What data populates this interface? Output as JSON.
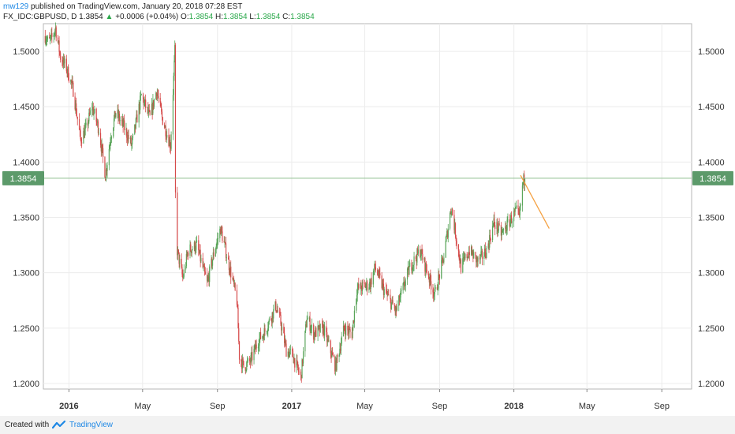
{
  "header": {
    "author": "mw129",
    "published_text": "published on TradingView.com, January 20, 2018 07:28 EST",
    "symbol": "FX_IDC:GBPUSD, D",
    "last_price": "1.3854",
    "change_arrow": "▲",
    "change": "+0.0006 (+0.04%)",
    "o_label": "O:",
    "o_value": "1.3854",
    "h_label": "H:",
    "h_value": "1.3854",
    "l_label": "L:",
    "l_value": "1.3854",
    "c_label": "C:",
    "c_value": "1.3854"
  },
  "footer": {
    "created_with": "Created with",
    "brand": "TradingView"
  },
  "colors": {
    "up": "#5aa55a",
    "down": "#d64a4a",
    "badge": "#5c9a6a",
    "trendline": "#f5a142",
    "grid": "#ececec",
    "brand": "#1e88e5"
  },
  "chart_data": {
    "type": "candlestick",
    "title": "",
    "ylim": [
      1.195,
      1.525
    ],
    "y_ticks": [
      "1.2000",
      "1.2500",
      "1.3000",
      "1.3500",
      "1.4000",
      "1.4500",
      "1.5000"
    ],
    "x_ticks": [
      {
        "label": "2016",
        "date": "2016-01-01",
        "bold": true
      },
      {
        "label": "May",
        "date": "2016-05-01",
        "bold": false
      },
      {
        "label": "Sep",
        "date": "2016-09-01",
        "bold": false
      },
      {
        "label": "2017",
        "date": "2017-01-01",
        "bold": true
      },
      {
        "label": "May",
        "date": "2017-05-01",
        "bold": false
      },
      {
        "label": "Sep",
        "date": "2017-09-01",
        "bold": false
      },
      {
        "label": "2018",
        "date": "2018-01-01",
        "bold": true
      },
      {
        "label": "May",
        "date": "2018-05-01",
        "bold": false
      },
      {
        "label": "Sep",
        "date": "2018-09-01",
        "bold": false
      }
    ],
    "x_range": [
      "2015-11-20",
      "2018-10-20"
    ],
    "last_price_label": "1.3854",
    "last_price": 1.3854,
    "trendline": {
      "x": [
        "2018-01-12",
        "2018-02-28"
      ],
      "y": [
        1.388,
        1.34
      ]
    },
    "price_path": [
      [
        "2015-11-22",
        1.515
      ],
      [
        "2015-11-28",
        1.508
      ],
      [
        "2015-12-04",
        1.512
      ],
      [
        "2015-12-10",
        1.521
      ],
      [
        "2015-12-18",
        1.495
      ],
      [
        "2015-12-28",
        1.485
      ],
      [
        "2016-01-08",
        1.465
      ],
      [
        "2016-01-20",
        1.42
      ],
      [
        "2016-01-29",
        1.43
      ],
      [
        "2016-02-08",
        1.45
      ],
      [
        "2016-02-19",
        1.43
      ],
      [
        "2016-03-01",
        1.388
      ],
      [
        "2016-03-10",
        1.425
      ],
      [
        "2016-03-18",
        1.445
      ],
      [
        "2016-03-31",
        1.432
      ],
      [
        "2016-04-13",
        1.415
      ],
      [
        "2016-04-29",
        1.46
      ],
      [
        "2016-05-13",
        1.44
      ],
      [
        "2016-05-24",
        1.465
      ],
      [
        "2016-06-02",
        1.44
      ],
      [
        "2016-06-16",
        1.415
      ],
      [
        "2016-06-23",
        1.5
      ],
      [
        "2016-06-24",
        1.37
      ],
      [
        "2016-06-27",
        1.32
      ],
      [
        "2016-07-06",
        1.295
      ],
      [
        "2016-07-15",
        1.32
      ],
      [
        "2016-07-29",
        1.325
      ],
      [
        "2016-08-15",
        1.29
      ],
      [
        "2016-08-25",
        1.315
      ],
      [
        "2016-09-06",
        1.34
      ],
      [
        "2016-09-23",
        1.3
      ],
      [
        "2016-10-03",
        1.275
      ],
      [
        "2016-10-07",
        1.225
      ],
      [
        "2016-10-14",
        1.215
      ],
      [
        "2016-10-25",
        1.22
      ],
      [
        "2016-11-08",
        1.24
      ],
      [
        "2016-11-16",
        1.245
      ],
      [
        "2016-12-06",
        1.27
      ],
      [
        "2016-12-14",
        1.255
      ],
      [
        "2016-12-23",
        1.23
      ],
      [
        "2017-01-03",
        1.225
      ],
      [
        "2017-01-16",
        1.205
      ],
      [
        "2017-01-26",
        1.26
      ],
      [
        "2017-02-06",
        1.245
      ],
      [
        "2017-02-22",
        1.25
      ],
      [
        "2017-03-14",
        1.215
      ],
      [
        "2017-03-28",
        1.25
      ],
      [
        "2017-04-10",
        1.245
      ],
      [
        "2017-04-18",
        1.285
      ],
      [
        "2017-05-10",
        1.29
      ],
      [
        "2017-05-18",
        1.305
      ],
      [
        "2017-06-01",
        1.285
      ],
      [
        "2017-06-21",
        1.265
      ],
      [
        "2017-07-14",
        1.305
      ],
      [
        "2017-07-31",
        1.32
      ],
      [
        "2017-08-24",
        1.28
      ],
      [
        "2017-09-08",
        1.315
      ],
      [
        "2017-09-20",
        1.36
      ],
      [
        "2017-10-06",
        1.305
      ],
      [
        "2017-10-20",
        1.32
      ],
      [
        "2017-11-03",
        1.31
      ],
      [
        "2017-11-17",
        1.32
      ],
      [
        "2017-11-29",
        1.345
      ],
      [
        "2017-12-12",
        1.335
      ],
      [
        "2017-12-29",
        1.35
      ],
      [
        "2018-01-05",
        1.355
      ],
      [
        "2018-01-10",
        1.35
      ],
      [
        "2018-01-16",
        1.382
      ],
      [
        "2018-01-19",
        1.3854
      ]
    ]
  }
}
